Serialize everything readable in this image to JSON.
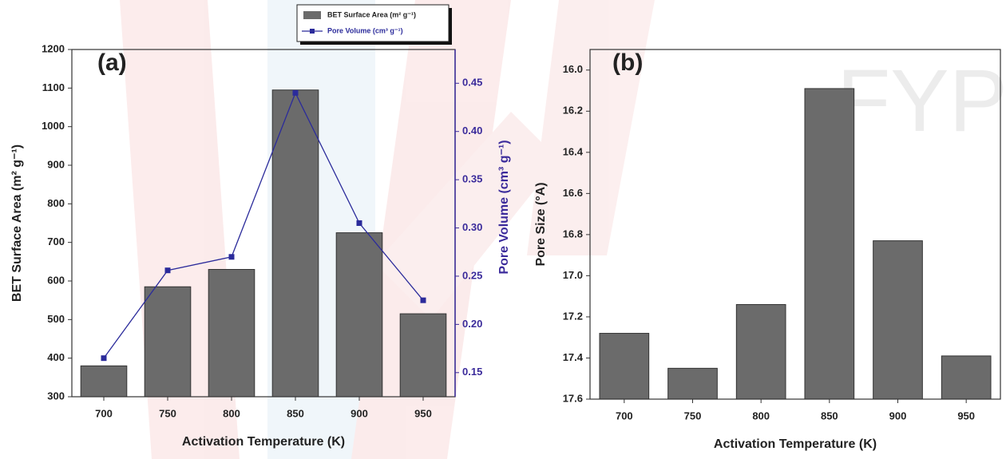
{
  "watermark": "FYP",
  "chart_data": [
    {
      "type": "bar",
      "panel_label": "(a)",
      "x_label": "Activation Temperature (K)",
      "y_label": "BET Surface Area (m² g⁻¹)",
      "y2_label": "Pore Volume (cm³ g⁻¹)",
      "y2_color": "#3b2b9b",
      "categories": [
        "700",
        "750",
        "800",
        "850",
        "900",
        "950"
      ],
      "series": [
        {
          "name": "BET Surface Area (m² g⁻¹)",
          "type": "bar",
          "color": "#6b6b6b",
          "values": [
            380,
            585,
            630,
            1095,
            725,
            515
          ]
        },
        {
          "name": "Pore Volume (cm³ g⁻¹)",
          "type": "line",
          "axis": "y2",
          "color": "#2b2b9b",
          "values": [
            0.165,
            0.256,
            0.27,
            0.44,
            0.305,
            0.225
          ]
        }
      ],
      "ylim": [
        300,
        1200
      ],
      "yticks": [
        300,
        400,
        500,
        600,
        700,
        800,
        900,
        1000,
        1100,
        1200
      ],
      "y2lim": [
        0.125,
        0.485
      ],
      "y2ticks": [
        0.15,
        {
          "value": 0.2,
          "label": "0.20"
        },
        0.25,
        {
          "value": 0.3,
          "label": "0.30"
        },
        0.35,
        {
          "value": 0.4,
          "label": "0.40"
        },
        0.45
      ],
      "legend": "top"
    },
    {
      "type": "bar",
      "panel_label": "(b)",
      "x_label": "Activation Temperature (K)",
      "y_label": "Pore Size (°A)",
      "categories": [
        "700",
        "750",
        "800",
        "850",
        "900",
        "950"
      ],
      "color": "#6b6b6b",
      "values": [
        17.28,
        17.45,
        17.14,
        16.09,
        16.83,
        17.39
      ],
      "ylim": [
        17.6,
        15.9
      ],
      "yticks": [
        {
          "value": 16,
          "label": "16.0"
        },
        16.2,
        16.4,
        16.6,
        16.8,
        {
          "value": 17,
          "label": "17.0"
        },
        17.2,
        17.4,
        17.6
      ]
    }
  ]
}
